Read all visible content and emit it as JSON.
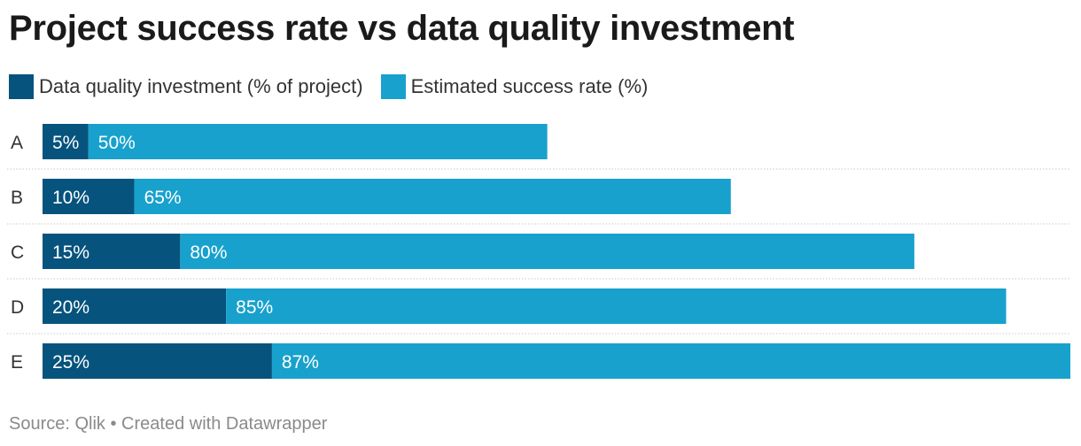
{
  "chart_data": {
    "type": "bar",
    "orientation": "horizontal",
    "stacked": true,
    "title": "Project success rate vs data quality investment",
    "categories": [
      "A",
      "B",
      "C",
      "D",
      "E"
    ],
    "series": [
      {
        "name": "Data quality investment (% of project)",
        "color": "#06537d",
        "values": [
          5,
          10,
          15,
          20,
          25
        ],
        "labels": [
          "5%",
          "10%",
          "15%",
          "20%",
          "25%"
        ]
      },
      {
        "name": "Estimated success rate (%)",
        "color": "#18a1cd",
        "values": [
          50,
          65,
          80,
          85,
          87
        ],
        "labels": [
          "50%",
          "65%",
          "80%",
          "85%",
          "87%"
        ]
      }
    ],
    "xlim": [
      0,
      112
    ],
    "grid": false,
    "legend": "top-left"
  },
  "footer": {
    "source": "Source: Qlik • Created with Datawrapper"
  }
}
